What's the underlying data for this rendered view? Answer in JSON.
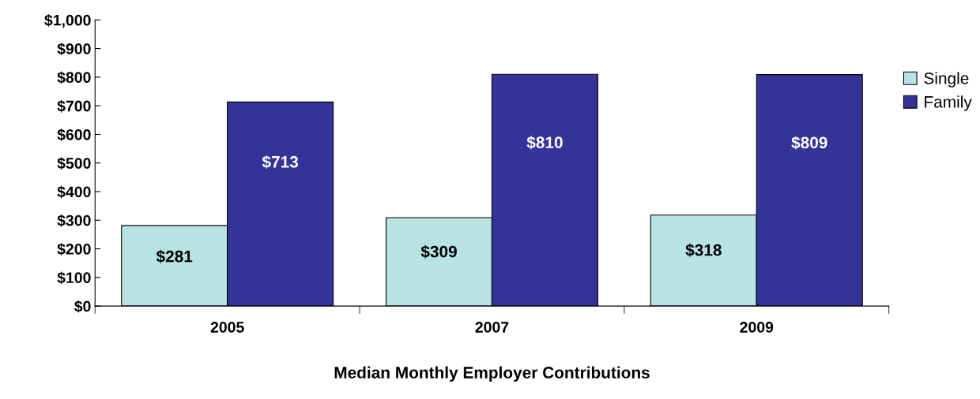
{
  "chart_data": {
    "type": "bar",
    "xlabel": "Median Monthly Employer Contributions",
    "categories": [
      "2005",
      "2007",
      "2009"
    ],
    "series": [
      {
        "name": "Single",
        "color": "#b7e3e4",
        "values": [
          281,
          309,
          318
        ],
        "value_labels": [
          "$281",
          "$309",
          "$318"
        ]
      },
      {
        "name": "Family",
        "color": "#333399",
        "values": [
          713,
          810,
          809
        ],
        "value_labels": [
          "$713",
          "$810",
          "$809"
        ]
      }
    ],
    "ylim": [
      0,
      1000
    ],
    "yticks": [
      {
        "value": 0,
        "label": "$0"
      },
      {
        "value": 100,
        "label": "$100"
      },
      {
        "value": 200,
        "label": "$200"
      },
      {
        "value": 300,
        "label": "$300"
      },
      {
        "value": 400,
        "label": "$400"
      },
      {
        "value": 500,
        "label": "$500"
      },
      {
        "value": 600,
        "label": "$600"
      },
      {
        "value": 700,
        "label": "$700"
      },
      {
        "value": 800,
        "label": "$800"
      },
      {
        "value": 900,
        "label": "$900"
      },
      {
        "value": 1000,
        "label": "$1,000"
      }
    ],
    "grid": false,
    "legend": "right"
  }
}
